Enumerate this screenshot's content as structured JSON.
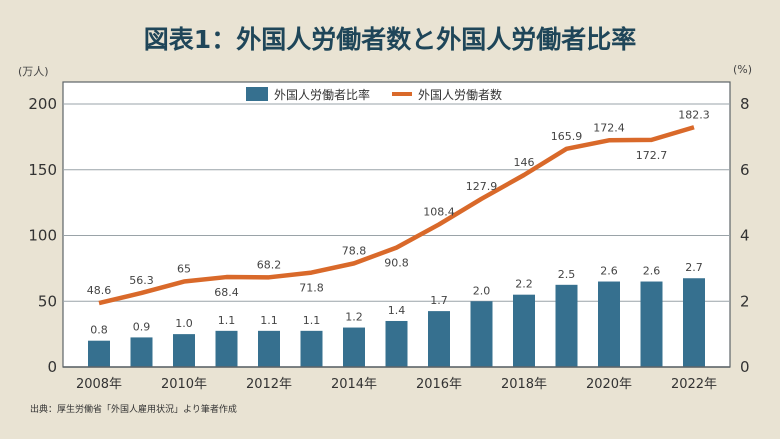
{
  "title": "図表1：外国人労働者数と外国人労働者比率",
  "source": "出典：厚生労働省「外国人雇用状況」より筆者作成",
  "colors": {
    "bar": "#36708f",
    "line": "#d9692a",
    "background": "#e9e3d3",
    "plot": "#ffffff",
    "grid": "#9aa3a8"
  },
  "chart_data": {
    "type": "bar+line",
    "title": "図表1：外国人労働者数と外国人労働者比率",
    "categories": [
      "2008",
      "2009",
      "2010",
      "2011",
      "2012",
      "2013",
      "2014",
      "2015",
      "2016",
      "2017",
      "2018",
      "2019",
      "2020",
      "2021",
      "2022"
    ],
    "x_tick_labels": [
      "2008年",
      "2010年",
      "2012年",
      "2014年",
      "2016年",
      "2018年",
      "2020年",
      "2022年"
    ],
    "x_tick_categories": [
      "2008",
      "2010",
      "2012",
      "2014",
      "2016",
      "2018",
      "2020",
      "2022"
    ],
    "left_axis": {
      "label": "(万人)",
      "ylim": [
        0,
        200
      ],
      "ticks": [
        0,
        50,
        100,
        150,
        200
      ]
    },
    "right_axis": {
      "label": "(%)",
      "ylim": [
        0,
        8
      ],
      "ticks": [
        0,
        2,
        4,
        6,
        8
      ]
    },
    "grid": true,
    "legend_position": "top-center",
    "series": [
      {
        "name": "外国人労働者比率",
        "type": "bar",
        "axis": "right",
        "values": [
          0.8,
          0.9,
          1.0,
          1.1,
          1.1,
          1.1,
          1.2,
          1.4,
          1.7,
          2.0,
          2.2,
          2.5,
          2.6,
          2.6,
          2.7
        ],
        "labels": [
          "0.8",
          "0.9",
          "1.0",
          "1.1",
          "1.1",
          "1.1",
          "1.2",
          "1.4",
          "1.7",
          "2.0",
          "2.2",
          "2.5",
          "2.6",
          "2.6",
          "2.7"
        ]
      },
      {
        "name": "外国人労働者数",
        "type": "line",
        "axis": "left",
        "values": [
          48.6,
          56.3,
          65,
          68.4,
          68.2,
          71.8,
          78.8,
          90.8,
          108.4,
          127.9,
          146,
          165.9,
          172.4,
          172.7,
          182.3
        ],
        "labels": [
          "48.6",
          "56.3",
          "65",
          "68.4",
          "68.2",
          "71.8",
          "78.8",
          "90.8",
          "108.4",
          "127.9",
          "146",
          "165.9",
          "172.4",
          "172.7",
          "182.3"
        ]
      }
    ]
  }
}
